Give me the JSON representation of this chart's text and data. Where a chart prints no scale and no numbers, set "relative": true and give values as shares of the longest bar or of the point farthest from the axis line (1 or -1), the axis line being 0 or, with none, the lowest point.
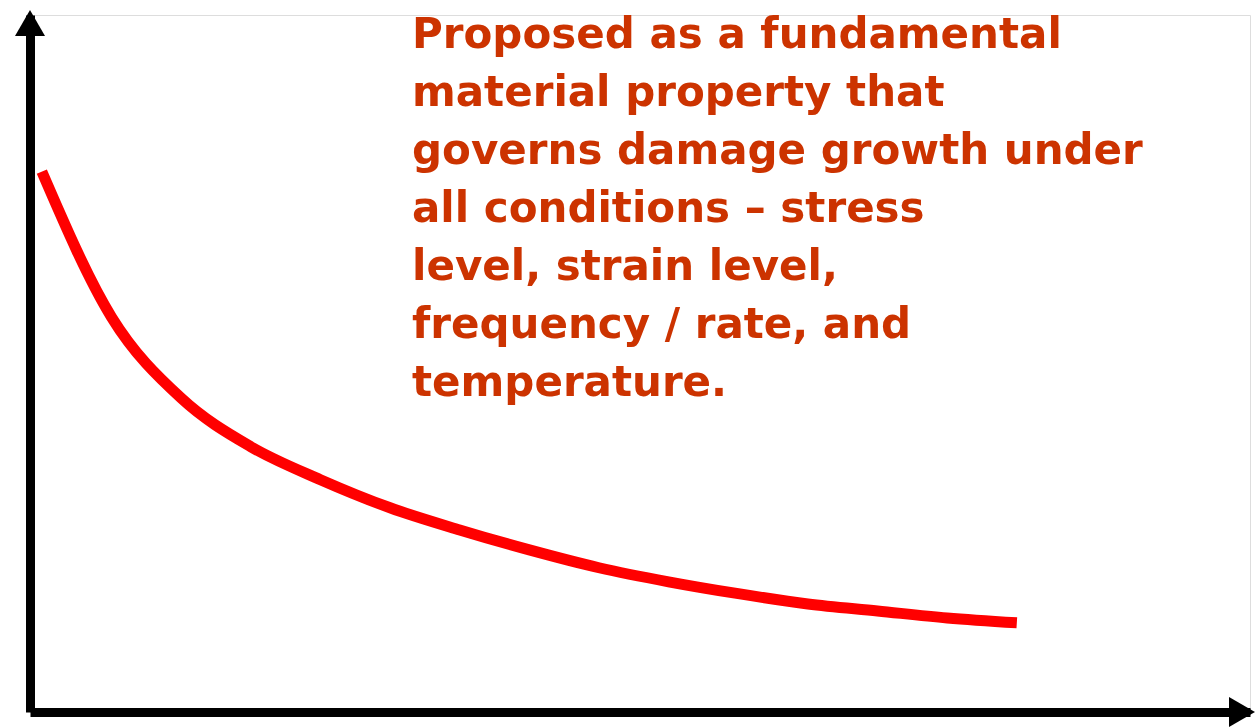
{
  "chart_data": {
    "type": "line",
    "relative": true,
    "categories": [
      null,
      null,
      null,
      null,
      null,
      null,
      null,
      null,
      null,
      null,
      null,
      null,
      null,
      null,
      null
    ],
    "series": [
      {
        "color": "#ff0000",
        "values": [
          1,
          0.731,
          0.581,
          0.491,
          0.43,
          0.378,
          0.337,
          0.3,
          0.267,
          0.241,
          0.219,
          0.2,
          0.187,
          0.174,
          0.165
        ]
      }
    ],
    "annotations": [
      "Proposed as a fundamental material property that governs damage growth under all conditions – stress level, strain level, frequency / rate, and temperature."
    ]
  }
}
